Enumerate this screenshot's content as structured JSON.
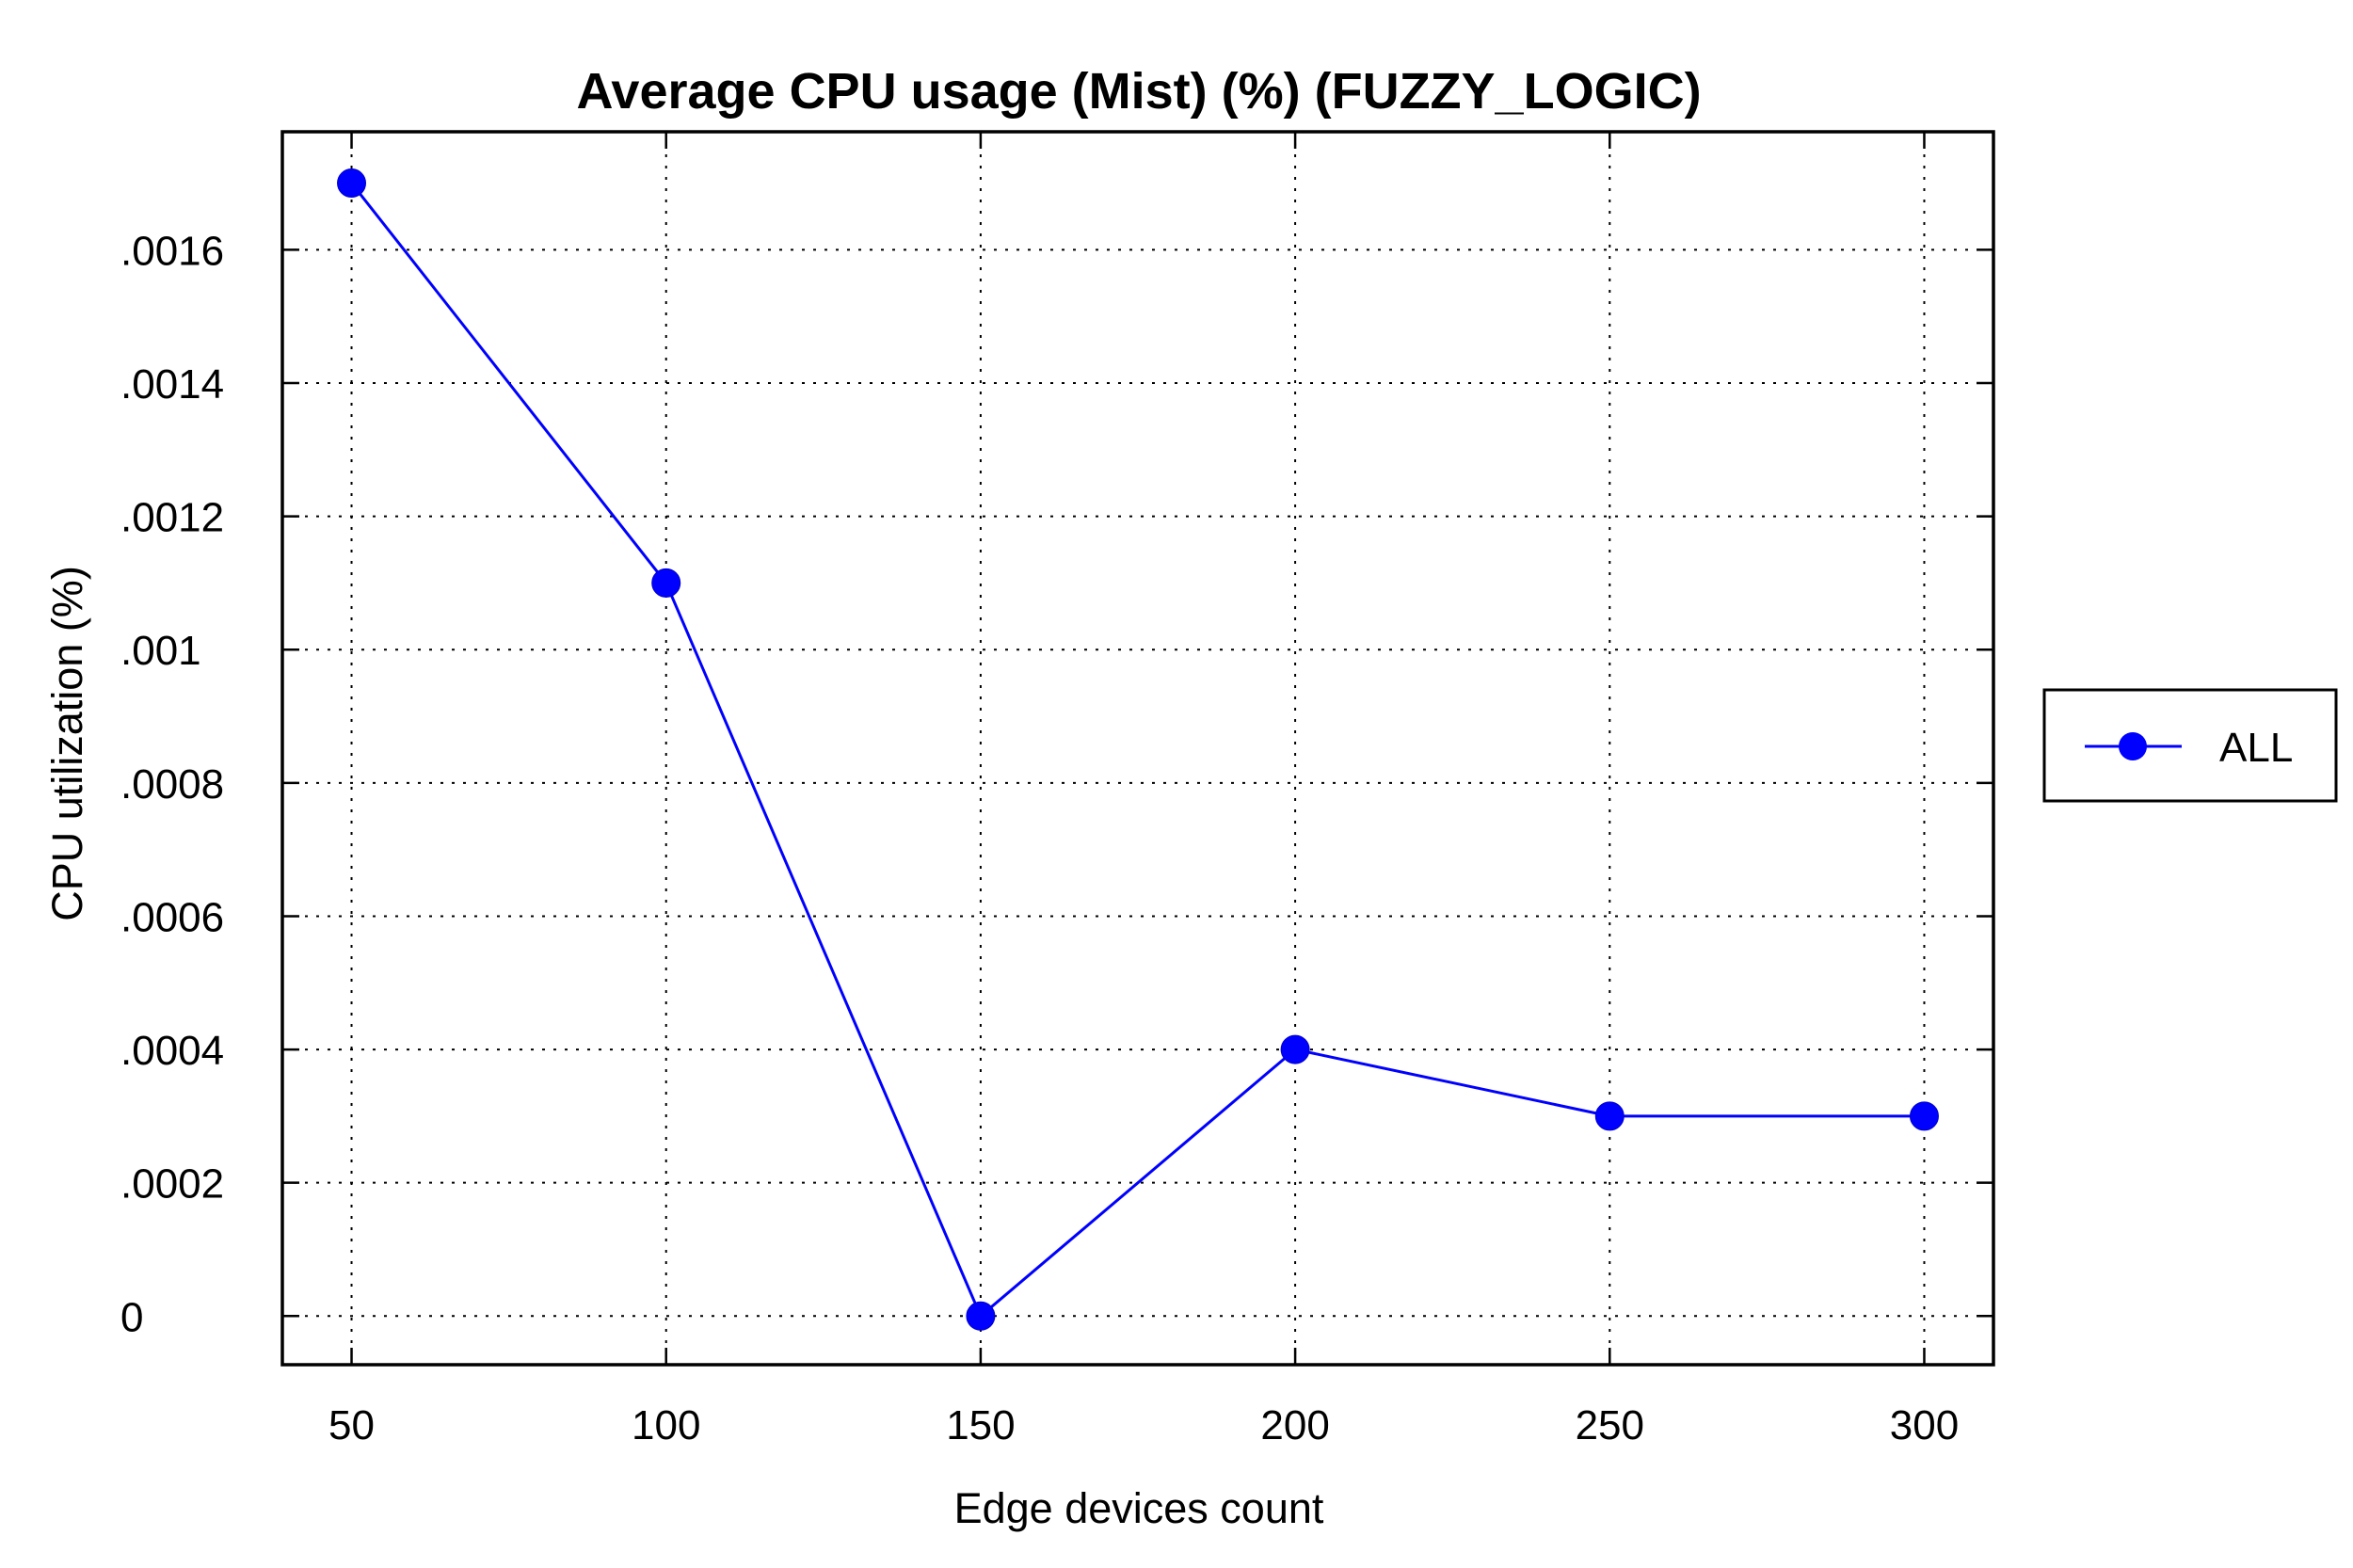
{
  "chart_data": {
    "type": "line",
    "title": "Average CPU usage (Mist) (%) (FUZZY_LOGIC)",
    "xlabel": "Edge devices count",
    "ylabel": "CPU utilization (%)",
    "x": [
      50,
      100,
      150,
      200,
      250,
      300
    ],
    "x_tick_labels": [
      "50",
      "100",
      "150",
      "200",
      "250",
      "300"
    ],
    "y_ticks": [
      0,
      0.0002,
      0.0004,
      0.0006,
      0.0008,
      0.001,
      0.0012,
      0.0014,
      0.0016
    ],
    "y_tick_labels": [
      "0",
      ".0002",
      ".0004",
      ".0006",
      ".0008",
      ".001",
      ".0012",
      ".0014",
      ".0016"
    ],
    "xlim": [
      39,
      311
    ],
    "ylim": [
      -7.3e-05,
      0.001777
    ],
    "grid": true,
    "legend_position": "right",
    "series": [
      {
        "name": "ALL",
        "color": "#0000ff",
        "marker": "circle",
        "values": [
          0.0017,
          0.0011,
          0.0,
          0.0004,
          0.0003,
          0.0003
        ]
      }
    ]
  }
}
